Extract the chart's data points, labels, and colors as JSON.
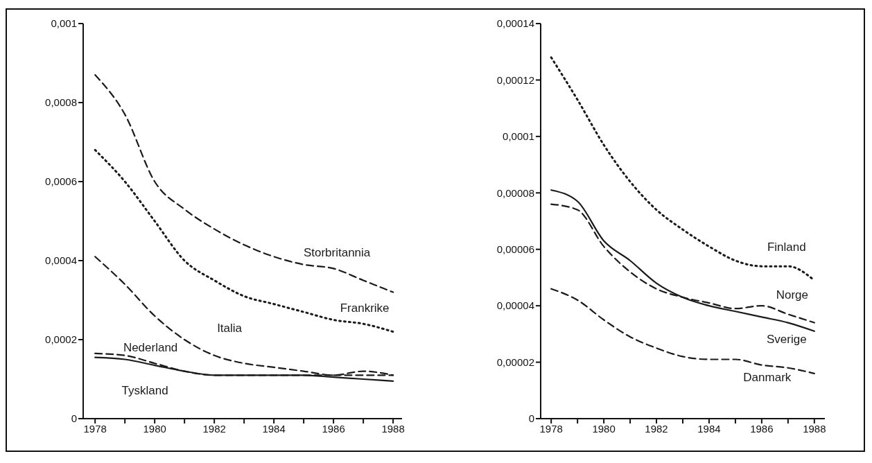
{
  "chart_data": [
    {
      "type": "line",
      "x": [
        1978,
        1979,
        1980,
        1981,
        1982,
        1983,
        1984,
        1985,
        1986,
        1987,
        1988
      ],
      "series": [
        {
          "name": "Storbritannia",
          "color": "#1a1a1a",
          "line_style": "dashed",
          "values": [
            0.00087,
            0.00077,
            0.0006,
            0.00053,
            0.00048,
            0.00044,
            0.00041,
            0.00039,
            0.00038,
            0.00035,
            0.00032
          ]
        },
        {
          "name": "Frankrike",
          "color": "#1a1a1a",
          "line_style": "dotted",
          "values": [
            0.00068,
            0.0006,
            0.0005,
            0.0004,
            0.00035,
            0.00031,
            0.00029,
            0.00027,
            0.00025,
            0.00024,
            0.00022
          ]
        },
        {
          "name": "Italia",
          "color": "#1a1a1a",
          "line_style": "dashed",
          "values": [
            0.00041,
            0.00034,
            0.00026,
            0.0002,
            0.00016,
            0.00014,
            0.00013,
            0.00012,
            0.00011,
            0.00011,
            0.00011
          ]
        },
        {
          "name": "Nederland",
          "color": "#1a1a1a",
          "line_style": "dashed",
          "values": [
            0.000165,
            0.00016,
            0.00014,
            0.00012,
            0.00011,
            0.00011,
            0.00011,
            0.00011,
            0.00011,
            0.00012,
            0.00011
          ]
        },
        {
          "name": "Tyskland",
          "color": "#1a1a1a",
          "line_style": "solid",
          "values": [
            0.000155,
            0.00015,
            0.000135,
            0.00012,
            0.00011,
            0.00011,
            0.00011,
            0.00011,
            0.000105,
            0.0001,
            9.5e-05
          ]
        }
      ],
      "xlim": [
        1977.6,
        1988.3
      ],
      "xticks": [
        1978,
        {
          "value": 1979,
          "label": null
        },
        1980,
        {
          "value": 1981,
          "label": null
        },
        1982,
        {
          "value": 1983,
          "label": null
        },
        1984,
        {
          "value": 1985,
          "label": null
        },
        1986,
        {
          "value": 1987,
          "label": null
        },
        1988
      ],
      "ylim": [
        0,
        0.001
      ],
      "yticks": [
        0,
        {
          "value": 0.0002,
          "label": "0,0002"
        },
        {
          "value": 0.0004,
          "label": "0,0004"
        },
        {
          "value": 0.0006,
          "label": "0,0006"
        },
        {
          "value": 0.0008,
          "label": "0,0008"
        },
        {
          "value": 0.001,
          "label": "0,001"
        }
      ]
    },
    {
      "type": "line",
      "x": [
        1978,
        1979,
        1980,
        1981,
        1982,
        1983,
        1984,
        1985,
        1986,
        1987,
        1988
      ],
      "series": [
        {
          "name": "Finland",
          "color": "#1a1a1a",
          "line_style": "dotted",
          "values": [
            0.000128,
            0.000113,
            9.7e-05,
            8.4e-05,
            7.4e-05,
            6.7e-05,
            6.1e-05,
            5.6e-05,
            5.4e-05,
            5.4e-05,
            4.9e-05
          ]
        },
        {
          "name": "Norge",
          "color": "#1a1a1a",
          "line_style": "dashed",
          "values": [
            7.6e-05,
            7.4e-05,
            6.1e-05,
            5.2e-05,
            4.6e-05,
            4.3e-05,
            4.1e-05,
            3.9e-05,
            4e-05,
            3.7e-05,
            3.4e-05
          ]
        },
        {
          "name": "Sverige",
          "color": "#1a1a1a",
          "line_style": "solid",
          "values": [
            8.1e-05,
            7.7e-05,
            6.3e-05,
            5.6e-05,
            4.8e-05,
            4.3e-05,
            4e-05,
            3.8e-05,
            3.6e-05,
            3.4e-05,
            3.1e-05
          ]
        },
        {
          "name": "Danmark",
          "color": "#1a1a1a",
          "line_style": "dashed",
          "values": [
            4.6e-05,
            4.2e-05,
            3.5e-05,
            2.9e-05,
            2.5e-05,
            2.2e-05,
            2.1e-05,
            2.1e-05,
            1.9e-05,
            1.8e-05,
            1.6e-05
          ]
        }
      ],
      "xlim": [
        1977.6,
        1988.4
      ],
      "xticks": [
        1978,
        {
          "value": 1979,
          "label": null
        },
        1980,
        {
          "value": 1981,
          "label": null
        },
        1982,
        {
          "value": 1983,
          "label": null
        },
        1984,
        {
          "value": 1985,
          "label": null
        },
        1986,
        {
          "value": 1987,
          "label": null
        },
        1988
      ],
      "ylim": [
        0,
        0.00014
      ],
      "yticks": [
        0,
        {
          "value": 2e-05,
          "label": "0,00002"
        },
        {
          "value": 4e-05,
          "label": "0,00004"
        },
        {
          "value": 6e-05,
          "label": "0,00006"
        },
        {
          "value": 8e-05,
          "label": "0,00008"
        },
        {
          "value": 0.0001,
          "label": "0,0001"
        },
        {
          "value": 0.00012,
          "label": "0,00012"
        },
        {
          "value": 0.00014,
          "label": "0,00014"
        }
      ]
    }
  ]
}
